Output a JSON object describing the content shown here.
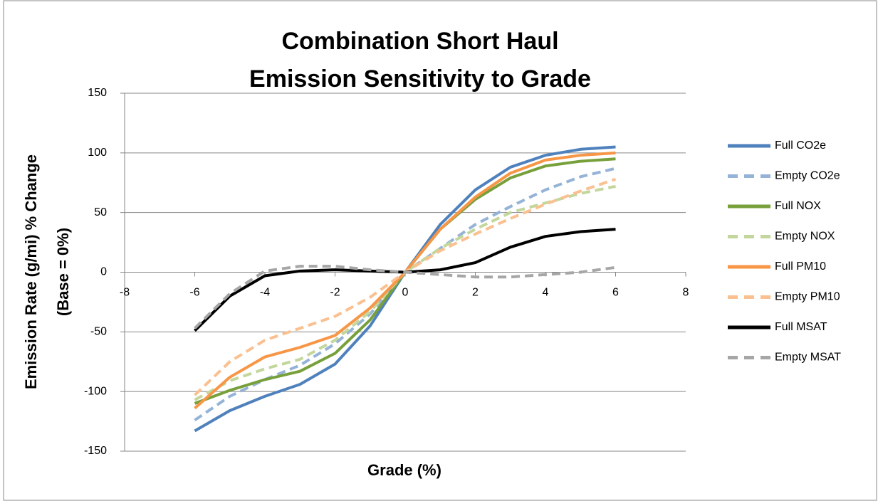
{
  "chart_data": {
    "type": "line",
    "title": [
      "Combination Short Haul",
      "Emission Sensitivity to Grade"
    ],
    "x_label": "Grade (%)",
    "y_label": [
      "Emission Rate (g/mi) % Change",
      "(Base = 0%)"
    ],
    "x": [
      -6,
      -5,
      -4,
      -3,
      -2,
      -1,
      0,
      1,
      2,
      3,
      4,
      5,
      6
    ],
    "series": [
      {
        "name": "Full CO2e",
        "color": "#4f81bd",
        "dashed": false,
        "values": [
          -133,
          -116,
          -104,
          -94,
          -77,
          -45,
          0,
          40,
          69,
          88,
          98,
          103,
          105
        ]
      },
      {
        "name": "Empty CO2e",
        "color": "#95b3d7",
        "dashed": true,
        "values": [
          -124,
          -104,
          -90,
          -78,
          -60,
          -35,
          0,
          20,
          40,
          55,
          69,
          80,
          87
        ]
      },
      {
        "name": "Full NOX",
        "color": "#77a03b",
        "dashed": false,
        "values": [
          -110,
          -99,
          -90,
          -83,
          -68,
          -40,
          0,
          36,
          61,
          79,
          89,
          93,
          95
        ]
      },
      {
        "name": "Empty NOX",
        "color": "#c3d69b",
        "dashed": true,
        "values": [
          -107,
          -91,
          -81,
          -73,
          -57,
          -33,
          0,
          20,
          36,
          50,
          58,
          66,
          72
        ]
      },
      {
        "name": "Full PM10",
        "color": "#f79646",
        "dashed": false,
        "values": [
          -114,
          -88,
          -71,
          -63,
          -53,
          -30,
          0,
          36,
          63,
          83,
          94,
          98,
          100
        ]
      },
      {
        "name": "Empty PM10",
        "color": "#fac090",
        "dashed": true,
        "values": [
          -103,
          -75,
          -57,
          -47,
          -37,
          -21,
          0,
          18,
          32,
          45,
          57,
          68,
          78
        ]
      },
      {
        "name": "Full MSAT",
        "color": "#000000",
        "dashed": false,
        "values": [
          -49,
          -20,
          -3,
          1,
          2,
          1,
          0,
          2,
          8,
          21,
          30,
          34,
          36
        ]
      },
      {
        "name": "Empty MSAT",
        "color": "#a6a6a6",
        "dashed": true,
        "values": [
          -47,
          -18,
          1,
          5,
          5,
          2,
          0,
          -2,
          -4,
          -4,
          -2,
          0,
          4
        ]
      }
    ],
    "xlim": [
      -8,
      8
    ],
    "xticks": [
      -8,
      -6,
      -4,
      -2,
      0,
      2,
      4,
      6,
      8
    ],
    "ylim": [
      -150,
      150
    ],
    "yticks": [
      -150,
      -100,
      -50,
      0,
      50,
      100,
      150
    ],
    "grid": true,
    "legend": "right"
  }
}
